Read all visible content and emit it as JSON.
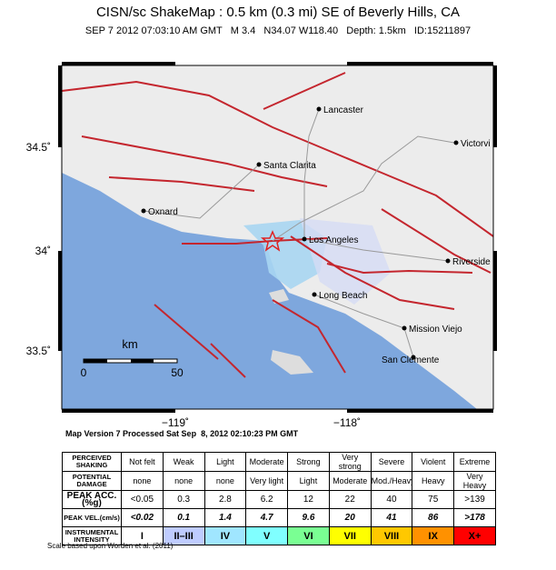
{
  "header": {
    "title": "CISN/sc ShakeMap : 0.5 km (0.3 mi) SE of Beverly Hills, CA",
    "subtitle": "SEP 7 2012 07:03:10 AM GMT   M 3.4   N34.07 W118.40   Depth: 1.5km   ID:15211897"
  },
  "map": {
    "cities": [
      "Lancaster",
      "Victorvi",
      "Santa Clarita",
      "Oxnard",
      "Los Angeles",
      "Riverside",
      "Long Beach",
      "Mission Viejo",
      "San Clemente"
    ],
    "lat_labels": [
      "34.5˚",
      "34˚",
      "33.5˚"
    ],
    "lon_labels": [
      "−119˚",
      "−118˚"
    ],
    "scale": {
      "unit": "km",
      "start": "0",
      "end": "50"
    }
  },
  "version": "Map Version 7 Processed Sat Sep  8, 2012 02:10:23 PM GMT",
  "table": {
    "rows": [
      [
        "PERCEIVED SHAKING",
        "Not felt",
        "Weak",
        "Light",
        "Moderate",
        "Strong",
        "Very strong",
        "Severe",
        "Violent",
        "Extreme"
      ],
      [
        "POTENTIAL DAMAGE",
        "none",
        "none",
        "none",
        "Very light",
        "Light",
        "Moderate",
        "Mod./Heavy",
        "Heavy",
        "Very Heavy"
      ],
      [
        "PEAK ACC.(%g)",
        "<0.05",
        "0.3",
        "2.8",
        "6.2",
        "12",
        "22",
        "40",
        "75",
        ">139"
      ],
      [
        "PEAK VEL.(cm/s)",
        "<0.02",
        "0.1",
        "1.4",
        "4.7",
        "9.6",
        "20",
        "41",
        "86",
        ">178"
      ],
      [
        "INSTRUMENTAL INTENSITY",
        "I",
        "II–III",
        "IV",
        "V",
        "VI",
        "VII",
        "VIII",
        "IX",
        "X+"
      ]
    ]
  },
  "footnote": "Scale based upon Worden et al. (2011)"
}
